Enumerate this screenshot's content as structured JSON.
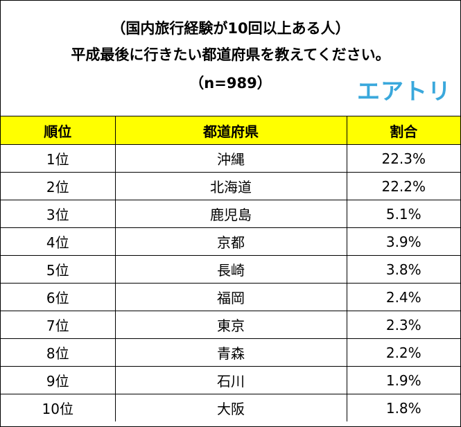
{
  "title": {
    "line1": "（国内旅行経験が10回以上ある人）",
    "line2": "平成最後に行きたい都道府県を教えてください。",
    "line3": "（n=989）"
  },
  "logo_text": "エアトリ",
  "colors": {
    "header_bg": "#ffff00",
    "logo": "#3aa8dc",
    "border": "#000000"
  },
  "chart_data": {
    "type": "table",
    "columns": [
      "順位",
      "都道府県",
      "割合"
    ],
    "rows": [
      {
        "rank": "1位",
        "prefecture": "沖縄",
        "share": "22.3%",
        "value": 22.3
      },
      {
        "rank": "2位",
        "prefecture": "北海道",
        "share": "22.2%",
        "value": 22.2
      },
      {
        "rank": "3位",
        "prefecture": "鹿児島",
        "share": "5.1%",
        "value": 5.1
      },
      {
        "rank": "4位",
        "prefecture": "京都",
        "share": "3.9%",
        "value": 3.9
      },
      {
        "rank": "5位",
        "prefecture": "長崎",
        "share": "3.8%",
        "value": 3.8
      },
      {
        "rank": "6位",
        "prefecture": "福岡",
        "share": "2.4%",
        "value": 2.4
      },
      {
        "rank": "7位",
        "prefecture": "東京",
        "share": "2.3%",
        "value": 2.3
      },
      {
        "rank": "8位",
        "prefecture": "青森",
        "share": "2.2%",
        "value": 2.2
      },
      {
        "rank": "9位",
        "prefecture": "石川",
        "share": "1.9%",
        "value": 1.9
      },
      {
        "rank": "10位",
        "prefecture": "大阪",
        "share": "1.8%",
        "value": 1.8
      }
    ]
  }
}
